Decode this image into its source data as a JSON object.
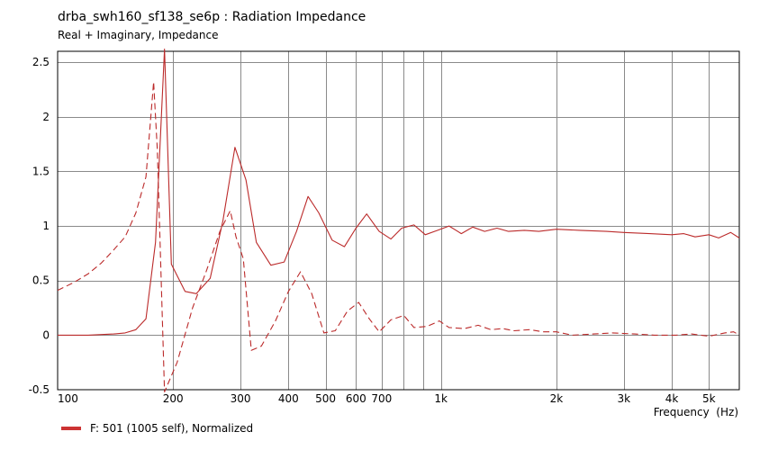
{
  "chart_data": {
    "type": "line",
    "title": "drba_swh160_sf138_se6p : Radiation Impedance",
    "subtitle": "Real + Imaginary, Impedance",
    "xlabel": "Frequency  (Hz)",
    "ylabel": "",
    "x_scale": "log",
    "xlim": [
      100,
      6000
    ],
    "ylim": [
      -0.5,
      2.6
    ],
    "x_tick_labels": [
      {
        "value": 100,
        "label": "100"
      },
      {
        "value": 200,
        "label": "200"
      },
      {
        "value": 300,
        "label": "300"
      },
      {
        "value": 400,
        "label": "400"
      },
      {
        "value": 500,
        "label": "500"
      },
      {
        "value": 600,
        "label": "600"
      },
      {
        "value": 700,
        "label": "700"
      },
      {
        "value": 1000,
        "label": "1k"
      },
      {
        "value": 2000,
        "label": "2k"
      },
      {
        "value": 3000,
        "label": "3k"
      },
      {
        "value": 4000,
        "label": "4k"
      },
      {
        "value": 5000,
        "label": "5k"
      }
    ],
    "x_gridlines": [
      200,
      300,
      400,
      500,
      600,
      700,
      800,
      900,
      1000,
      2000,
      3000,
      4000,
      5000
    ],
    "y_ticks": [
      {
        "value": 2.5,
        "label": "2.5"
      },
      {
        "value": 2,
        "label": "2"
      },
      {
        "value": 1.5,
        "label": "1.5"
      },
      {
        "value": 1,
        "label": "1"
      },
      {
        "value": 0.5,
        "label": "0.5"
      },
      {
        "value": 0,
        "label": "0"
      },
      {
        "value": -0.5,
        "label": "-0.5"
      }
    ],
    "grid": true,
    "legend": {
      "position": "bottom-left",
      "entries": [
        {
          "label": "F: 501 (1005 self), Normalized",
          "color": "#cc3333"
        }
      ]
    },
    "series": [
      {
        "style": "solid",
        "color": "#bb2a2a",
        "points": [
          [
            100,
            0.0
          ],
          [
            120,
            0.0
          ],
          [
            140,
            0.01
          ],
          [
            150,
            0.02
          ],
          [
            160,
            0.05
          ],
          [
            170,
            0.15
          ],
          [
            180,
            0.85
          ],
          [
            190,
            2.62
          ],
          [
            198,
            0.65
          ],
          [
            215,
            0.4
          ],
          [
            230,
            0.38
          ],
          [
            250,
            0.52
          ],
          [
            270,
            1.05
          ],
          [
            290,
            1.72
          ],
          [
            310,
            1.42
          ],
          [
            330,
            0.85
          ],
          [
            360,
            0.64
          ],
          [
            390,
            0.67
          ],
          [
            420,
            0.95
          ],
          [
            450,
            1.27
          ],
          [
            480,
            1.12
          ],
          [
            520,
            0.87
          ],
          [
            560,
            0.81
          ],
          [
            600,
            0.98
          ],
          [
            640,
            1.11
          ],
          [
            690,
            0.95
          ],
          [
            740,
            0.88
          ],
          [
            790,
            0.98
          ],
          [
            850,
            1.01
          ],
          [
            910,
            0.92
          ],
          [
            980,
            0.96
          ],
          [
            1050,
            1.0
          ],
          [
            1130,
            0.93
          ],
          [
            1210,
            0.99
          ],
          [
            1300,
            0.95
          ],
          [
            1400,
            0.98
          ],
          [
            1500,
            0.95
          ],
          [
            1650,
            0.96
          ],
          [
            1800,
            0.95
          ],
          [
            2000,
            0.97
          ],
          [
            2300,
            0.96
          ],
          [
            2700,
            0.95
          ],
          [
            3000,
            0.94
          ],
          [
            3500,
            0.93
          ],
          [
            4000,
            0.92
          ],
          [
            4300,
            0.93
          ],
          [
            4600,
            0.9
          ],
          [
            5000,
            0.92
          ],
          [
            5300,
            0.89
          ],
          [
            5700,
            0.94
          ],
          [
            6000,
            0.89
          ]
        ]
      },
      {
        "style": "dashed",
        "color": "#bb2a2a",
        "points": [
          [
            100,
            0.41
          ],
          [
            110,
            0.48
          ],
          [
            120,
            0.56
          ],
          [
            130,
            0.66
          ],
          [
            140,
            0.78
          ],
          [
            150,
            0.9
          ],
          [
            160,
            1.12
          ],
          [
            170,
            1.45
          ],
          [
            178,
            2.32
          ],
          [
            182,
            1.7
          ],
          [
            190,
            -0.52
          ],
          [
            205,
            -0.25
          ],
          [
            225,
            0.25
          ],
          [
            245,
            0.6
          ],
          [
            265,
            0.95
          ],
          [
            282,
            1.14
          ],
          [
            292,
            0.9
          ],
          [
            305,
            0.7
          ],
          [
            320,
            -0.14
          ],
          [
            340,
            -0.1
          ],
          [
            370,
            0.13
          ],
          [
            400,
            0.4
          ],
          [
            430,
            0.58
          ],
          [
            460,
            0.38
          ],
          [
            495,
            0.02
          ],
          [
            530,
            0.04
          ],
          [
            570,
            0.22
          ],
          [
            610,
            0.3
          ],
          [
            650,
            0.15
          ],
          [
            690,
            0.03
          ],
          [
            740,
            0.14
          ],
          [
            800,
            0.18
          ],
          [
            850,
            0.07
          ],
          [
            920,
            0.08
          ],
          [
            990,
            0.13
          ],
          [
            1050,
            0.07
          ],
          [
            1150,
            0.06
          ],
          [
            1250,
            0.09
          ],
          [
            1350,
            0.05
          ],
          [
            1450,
            0.06
          ],
          [
            1550,
            0.04
          ],
          [
            1700,
            0.05
          ],
          [
            1850,
            0.03
          ],
          [
            2000,
            0.03
          ],
          [
            2200,
            0.0
          ],
          [
            2500,
            0.01
          ],
          [
            2800,
            0.02
          ],
          [
            3200,
            0.01
          ],
          [
            3600,
            0.0
          ],
          [
            4100,
            0.0
          ],
          [
            4500,
            0.01
          ],
          [
            5000,
            -0.01
          ],
          [
            5500,
            0.02
          ],
          [
            5800,
            0.03
          ],
          [
            6000,
            0.0
          ]
        ]
      }
    ]
  }
}
